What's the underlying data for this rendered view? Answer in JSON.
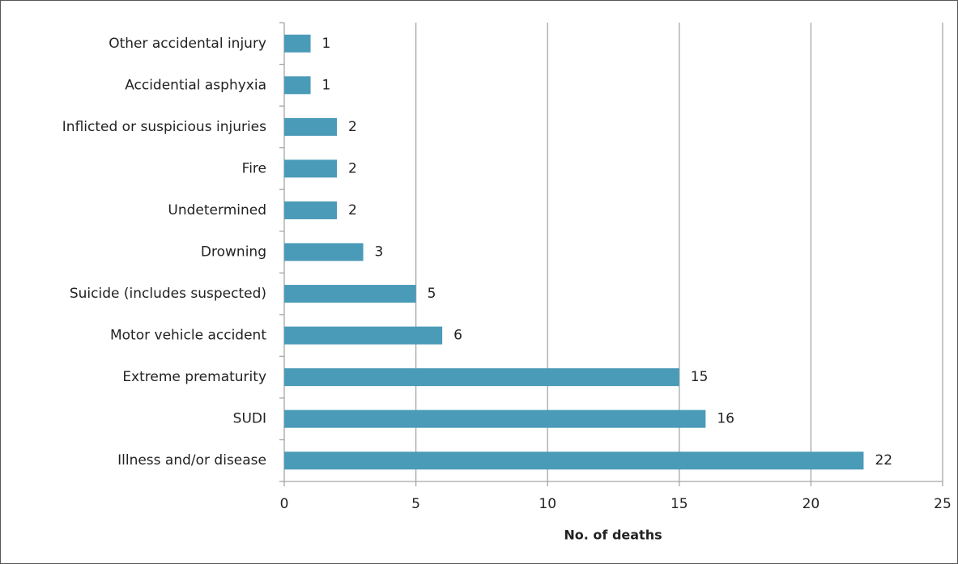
{
  "chart_data": {
    "type": "bar",
    "orientation": "horizontal",
    "categories": [
      "Other accidental injury",
      "Accidential asphyxia",
      "Inflicted or suspicious injuries",
      "Fire",
      "Undetermined",
      "Drowning",
      "Suicide (includes suspected)",
      "Motor vehicle accident",
      "Extreme prematurity",
      "SUDI",
      "Illness and/or disease"
    ],
    "values": [
      1,
      1,
      2,
      2,
      2,
      3,
      5,
      6,
      15,
      16,
      22
    ],
    "color": "#4a9bb8",
    "x_label": "No. of deaths",
    "xlim": [
      0,
      25
    ],
    "xticks": [
      0,
      5,
      10,
      15,
      20,
      25
    ],
    "grid": true
  }
}
